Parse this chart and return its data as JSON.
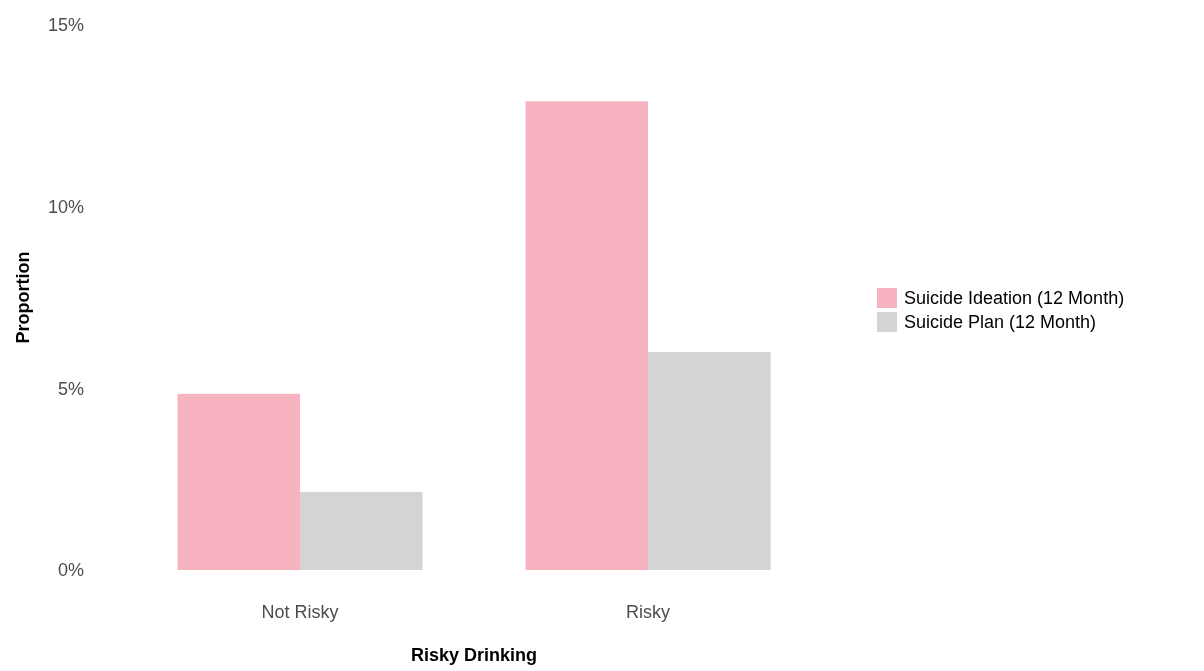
{
  "chart_data": {
    "type": "bar",
    "xlabel": "Risky Drinking",
    "ylabel": "Proportion",
    "categories": [
      "Not Risky",
      "Risky"
    ],
    "series": [
      {
        "name": "Suicide Ideation (12 Month)",
        "color": "#f7b4c0",
        "values": [
          4.85,
          12.9
        ]
      },
      {
        "name": "Suicide Plan (12 Month)",
        "color": "#d4d4d4",
        "values": [
          2.15,
          6.0
        ]
      }
    ],
    "ylim": [
      0,
      15
    ],
    "yticks": [
      {
        "value": 0,
        "label": "0%"
      },
      {
        "value": 5,
        "label": "5%"
      },
      {
        "value": 10,
        "label": "10%"
      },
      {
        "value": 15,
        "label": "15%"
      }
    ],
    "grid": false,
    "legend": "right"
  }
}
